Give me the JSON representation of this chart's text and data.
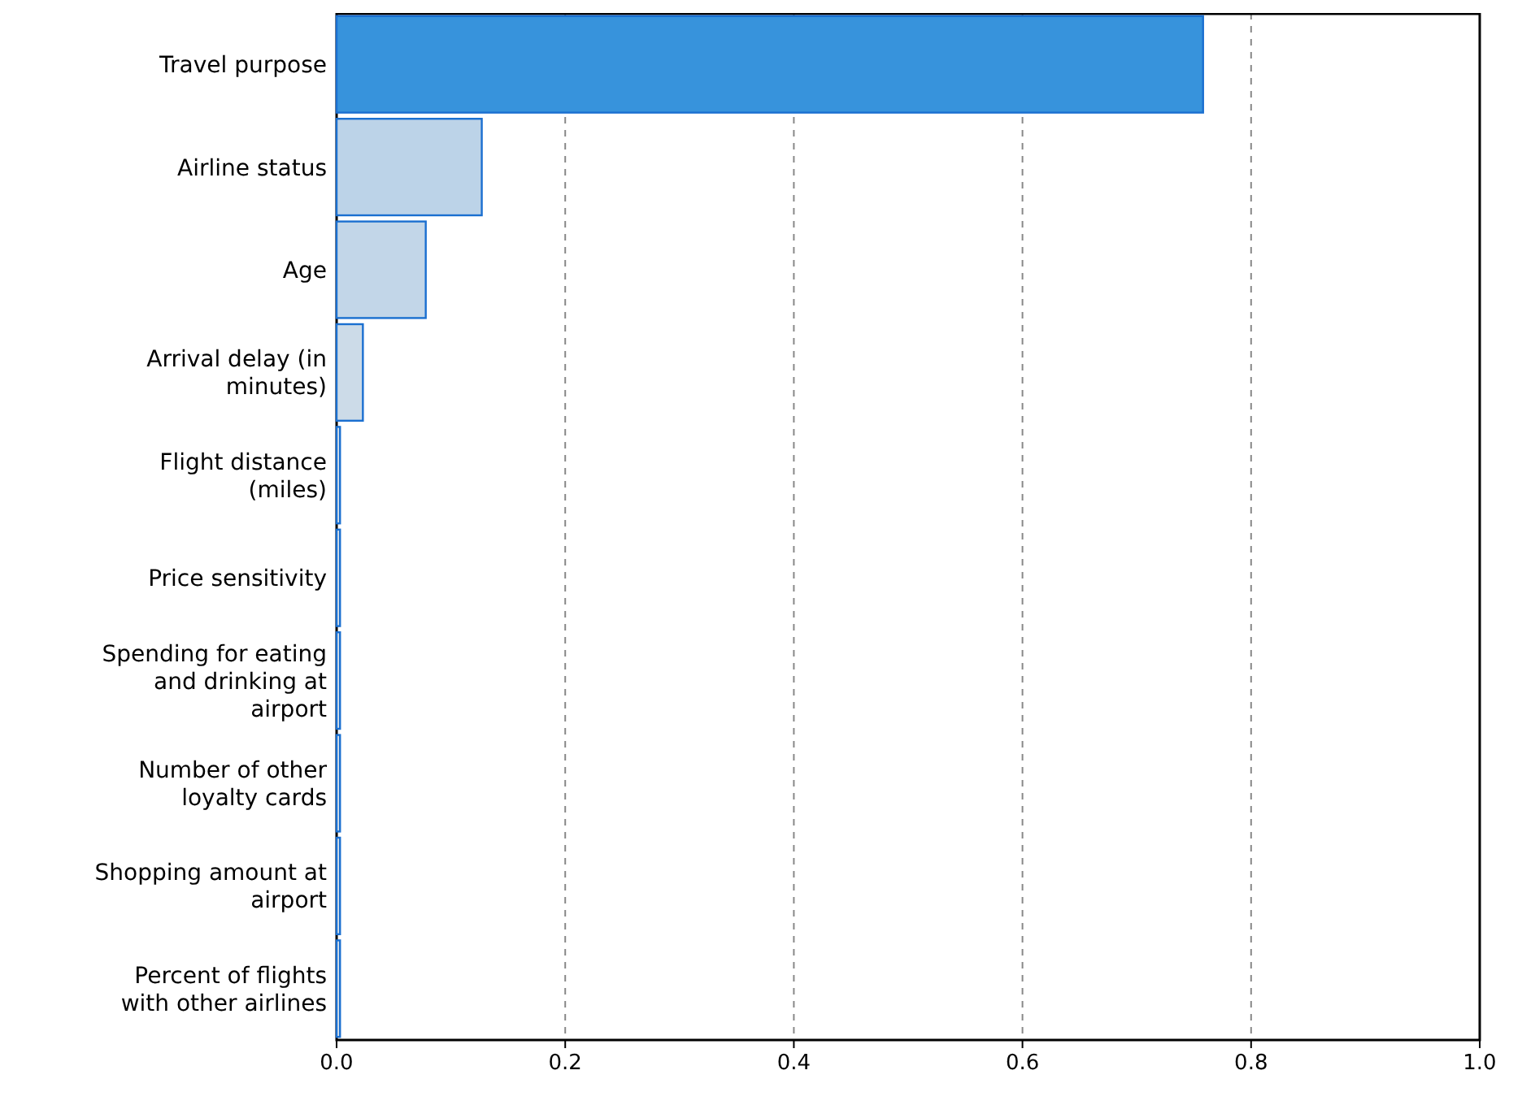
{
  "chart_data": {
    "type": "bar",
    "orientation": "horizontal",
    "categories": [
      "Travel purpose",
      "Airline status",
      "Age",
      "Arrival delay (in minutes)",
      "Flight distance (miles)",
      "Price sensitivity",
      "Spending for eating and drinking at airport",
      "Number of other loyalty cards",
      "Shopping amount at airport",
      "Percent of flights with other airlines"
    ],
    "values": [
      0.758,
      0.127,
      0.078,
      0.023,
      0.003,
      0.003,
      0.003,
      0.003,
      0.003,
      0.003
    ],
    "colors": [
      "#3793dc",
      "#bcd3e8",
      "#c2d6e8",
      "#ccdbe8",
      "#d5e0ea",
      "#d5e0ea",
      "#d5e0ea",
      "#d5e0ea",
      "#d5e0ea",
      "#d5e0ea"
    ],
    "xlim": [
      0,
      1
    ],
    "xticks": [
      {
        "value": 0,
        "label": "0.0"
      },
      {
        "value": 0.2,
        "label": "0.2"
      },
      {
        "value": 0.4,
        "label": "0.4"
      },
      {
        "value": 0.6,
        "label": "0.6"
      },
      {
        "value": 0.8,
        "label": "0.8"
      },
      {
        "value": 1,
        "label": "1.0"
      }
    ],
    "grid": "x"
  }
}
